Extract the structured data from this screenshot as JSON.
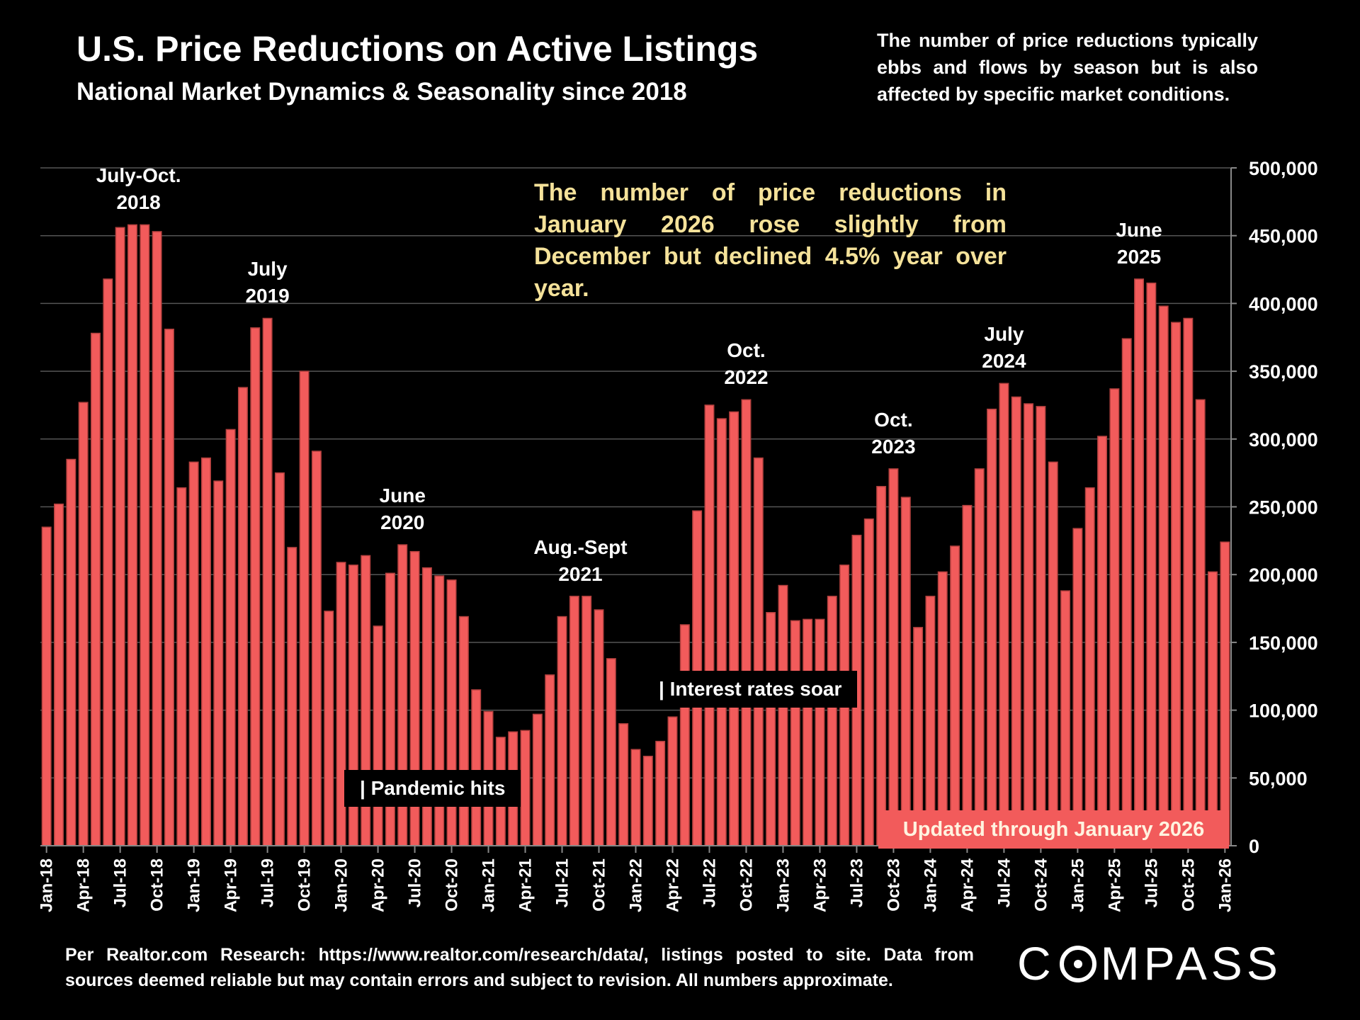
{
  "header": {
    "title": "U.S. Price Reductions on Active Listings",
    "subtitle": "National Market Dynamics & Seasonality since 2018",
    "note": "The number of price reductions typically ebbs and flows by season but is also affected by specific market conditions."
  },
  "headline": "The number of price reductions in January 2026 rose slightly from December but declined 4.5% year over year.",
  "peak_labels": [
    {
      "line1": "July-Oct.",
      "line2": "2018",
      "month_index": 7.5
    },
    {
      "line1": "July",
      "line2": "2019",
      "month_index": 18
    },
    {
      "line1": "June",
      "line2": "2020",
      "month_index": 29
    },
    {
      "line1": "Aug.-Sept",
      "line2": "2021",
      "month_index": 43.5
    },
    {
      "line1": "Oct.",
      "line2": "2022",
      "month_index": 57
    },
    {
      "line1": "Oct.",
      "line2": "2023",
      "month_index": 69
    },
    {
      "line1": "July",
      "line2": "2024",
      "month_index": 78
    },
    {
      "line1": "June",
      "line2": "2025",
      "month_index": 89
    }
  ],
  "events": {
    "pandemic": "| Pandemic hits",
    "rates": "| Interest rates soar"
  },
  "updated_label": "Updated through January 2026",
  "footer": {
    "source": "Per Realtor.com Research:  https://www.realtor.com/research/data/, listings posted to site. Data from sources deemed reliable but may contain errors and subject to revision. All numbers approximate.",
    "logo_left": "C",
    "logo_right": "MPASS"
  },
  "colors": {
    "bar": "#f25b5b",
    "bar_edge": "#b3403e",
    "grid": "#555555",
    "headline": "#f5e29a"
  },
  "chart_data": {
    "type": "bar",
    "ylim": [
      0,
      500000
    ],
    "yticks": [
      "0",
      "50,000",
      "100,000",
      "150,000",
      "200,000",
      "250,000",
      "300,000",
      "350,000",
      "400,000",
      "450,000",
      "500,000"
    ],
    "x_tick_labels": [
      "Jan-18",
      "Apr-18",
      "Jul-18",
      "Oct-18",
      "Jan-19",
      "Apr-19",
      "Jul-19",
      "Oct-19",
      "Jan-20",
      "Apr-20",
      "Jul-20",
      "Oct-20",
      "Jan-21",
      "Apr-21",
      "Jul-21",
      "Oct-21",
      "Jan-22",
      "Apr-22",
      "Jul-22",
      "Oct-22",
      "Jan-23",
      "Apr-23",
      "Jul-23",
      "Oct-23",
      "Jan-24",
      "Apr-24",
      "Jul-24",
      "Oct-24",
      "Jan-25",
      "Apr-25",
      "Jul-25",
      "Oct-25",
      "Jan-26"
    ],
    "values": [
      235000,
      252000,
      285000,
      327000,
      378000,
      418000,
      456000,
      458000,
      458000,
      453000,
      381000,
      264000,
      283000,
      286000,
      269000,
      307000,
      338000,
      382000,
      389000,
      275000,
      220000,
      350000,
      291000,
      173000,
      209000,
      207000,
      214000,
      162000,
      201000,
      222000,
      217000,
      205000,
      199000,
      196000,
      169000,
      115000,
      99000,
      80000,
      84000,
      85000,
      97000,
      126000,
      169000,
      184000,
      184000,
      174000,
      138000,
      90000,
      71000,
      66000,
      77000,
      95000,
      163000,
      247000,
      325000,
      315000,
      320000,
      329000,
      286000,
      172000,
      192000,
      166000,
      167000,
      167000,
      184000,
      207000,
      229000,
      241000,
      265000,
      278000,
      257000,
      161000,
      184000,
      202000,
      221000,
      251000,
      278000,
      322000,
      341000,
      331000,
      326000,
      324000,
      283000,
      188000,
      234000,
      264000,
      302000,
      337000,
      374000,
      418000,
      415000,
      398000,
      386000,
      389000,
      329000,
      202000,
      224000
    ]
  }
}
